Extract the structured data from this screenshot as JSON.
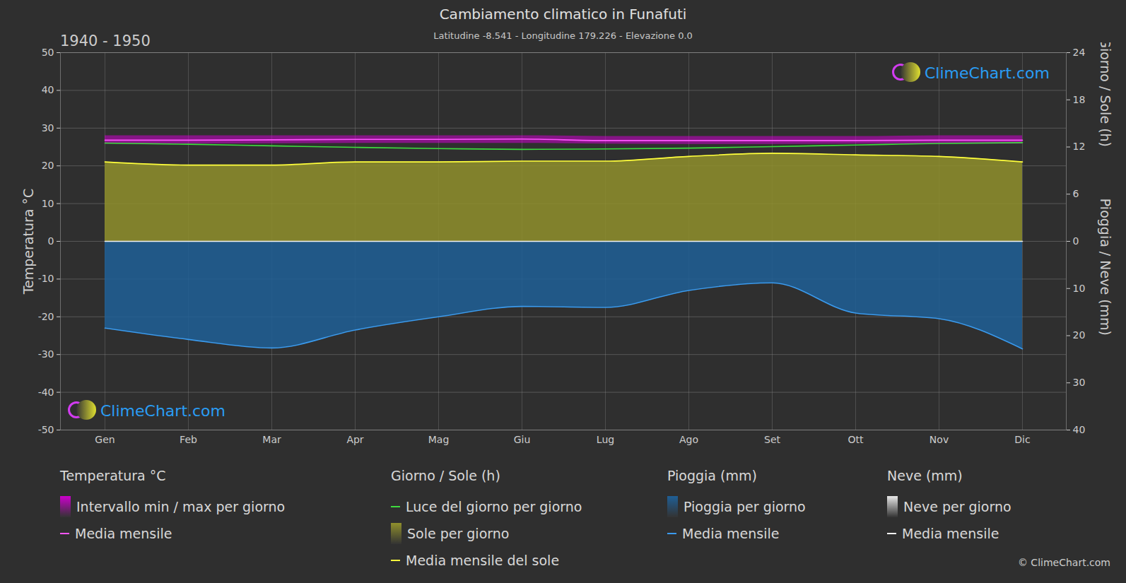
{
  "chart_data": {
    "type": "climate",
    "title": "Cambiamento climatico in Funafuti",
    "subtitle": "Latitudine -8.541 - Longitudine 179.226 - Elevazione 0.0",
    "period": "1940 - 1950",
    "watermark": "ClimeChart.com",
    "copyright": "© ClimeChart.com",
    "categories": [
      "Gen",
      "Feb",
      "Mar",
      "Apr",
      "Mag",
      "Giu",
      "Lug",
      "Ago",
      "Set",
      "Ott",
      "Nov",
      "Dic"
    ],
    "y_label": "Temperatura °C",
    "ylim": [
      -50,
      50
    ],
    "yticks": [
      -50,
      -40,
      -30,
      -20,
      -10,
      0,
      10,
      20,
      30,
      40,
      50
    ],
    "y2_label": "Giorno / Sole (h)",
    "y2lim": [
      0,
      24
    ],
    "y2ticks": [
      0,
      6,
      12,
      18,
      24
    ],
    "y3_label": "Pioggia / Neve (mm)",
    "y3lim": [
      0,
      40
    ],
    "y3ticks": [
      10,
      20,
      30,
      40
    ],
    "grid": true,
    "legend": "bottom",
    "series": [
      {
        "name": "Intervallo min / max per giorno",
        "group": "Temperatura °C",
        "type": "band",
        "color": "#cc00cc",
        "min": [
          25.8,
          25.8,
          25.9,
          26.0,
          26.0,
          26.0,
          25.8,
          25.7,
          25.7,
          25.8,
          25.8,
          25.8
        ],
        "max": [
          28.0,
          28.0,
          28.0,
          28.0,
          28.0,
          28.0,
          27.8,
          27.8,
          27.8,
          27.8,
          28.0,
          28.0
        ]
      },
      {
        "name": "Media mensile",
        "group": "Temperatura °C",
        "type": "line",
        "color": "#ff55ff",
        "values": [
          26.8,
          26.8,
          26.9,
          27.0,
          27.0,
          27.1,
          26.7,
          26.7,
          26.7,
          26.7,
          26.8,
          26.8
        ]
      },
      {
        "name": "Luce del giorno per giorno",
        "group": "Giorno / Sole (h)",
        "type": "line",
        "axis": "y2",
        "color": "#3fdc3f",
        "values": [
          12.5,
          12.35,
          12.15,
          11.95,
          11.8,
          11.7,
          11.75,
          11.85,
          12.05,
          12.25,
          12.45,
          12.55
        ]
      },
      {
        "name": "Sole per giorno",
        "group": "Giorno / Sole (h)",
        "type": "area",
        "axis": "y2",
        "color": "#8f8f2c",
        "values": [
          10.1,
          9.7,
          9.7,
          10.1,
          10.1,
          10.2,
          10.2,
          10.8,
          11.2,
          11.0,
          10.8,
          10.1
        ]
      },
      {
        "name": "Media mensile del sole",
        "group": "Giorno / Sole (h)",
        "type": "line",
        "axis": "y2",
        "color": "#ffff3c",
        "values": [
          10.1,
          9.7,
          9.7,
          10.1,
          10.1,
          10.2,
          10.2,
          10.8,
          11.2,
          11.0,
          10.8,
          10.1
        ]
      },
      {
        "name": "Pioggia per giorno",
        "group": "Pioggia (mm)",
        "type": "area",
        "axis": "y3",
        "color": "#1f5f96",
        "values": [
          18.4,
          20.8,
          22.6,
          18.8,
          16.0,
          13.8,
          14.0,
          10.4,
          8.8,
          15.2,
          16.4,
          22.8
        ]
      },
      {
        "name": "Media mensile",
        "group": "Pioggia (mm)",
        "type": "line",
        "axis": "y3",
        "color": "#3a9bef",
        "values": [
          18.4,
          20.8,
          22.6,
          18.8,
          16.0,
          13.8,
          14.0,
          10.4,
          8.8,
          15.2,
          16.4,
          22.8
        ]
      },
      {
        "name": "Neve per giorno",
        "group": "Neve (mm)",
        "type": "area",
        "axis": "y3",
        "color": "#e8e8e8",
        "values": [
          0,
          0,
          0,
          0,
          0,
          0,
          0,
          0,
          0,
          0,
          0,
          0
        ]
      },
      {
        "name": "Media mensile",
        "group": "Neve (mm)",
        "type": "line",
        "axis": "y3",
        "color": "#f2f2f2",
        "values": [
          0,
          0,
          0,
          0,
          0,
          0,
          0,
          0,
          0,
          0,
          0,
          0
        ]
      }
    ]
  }
}
